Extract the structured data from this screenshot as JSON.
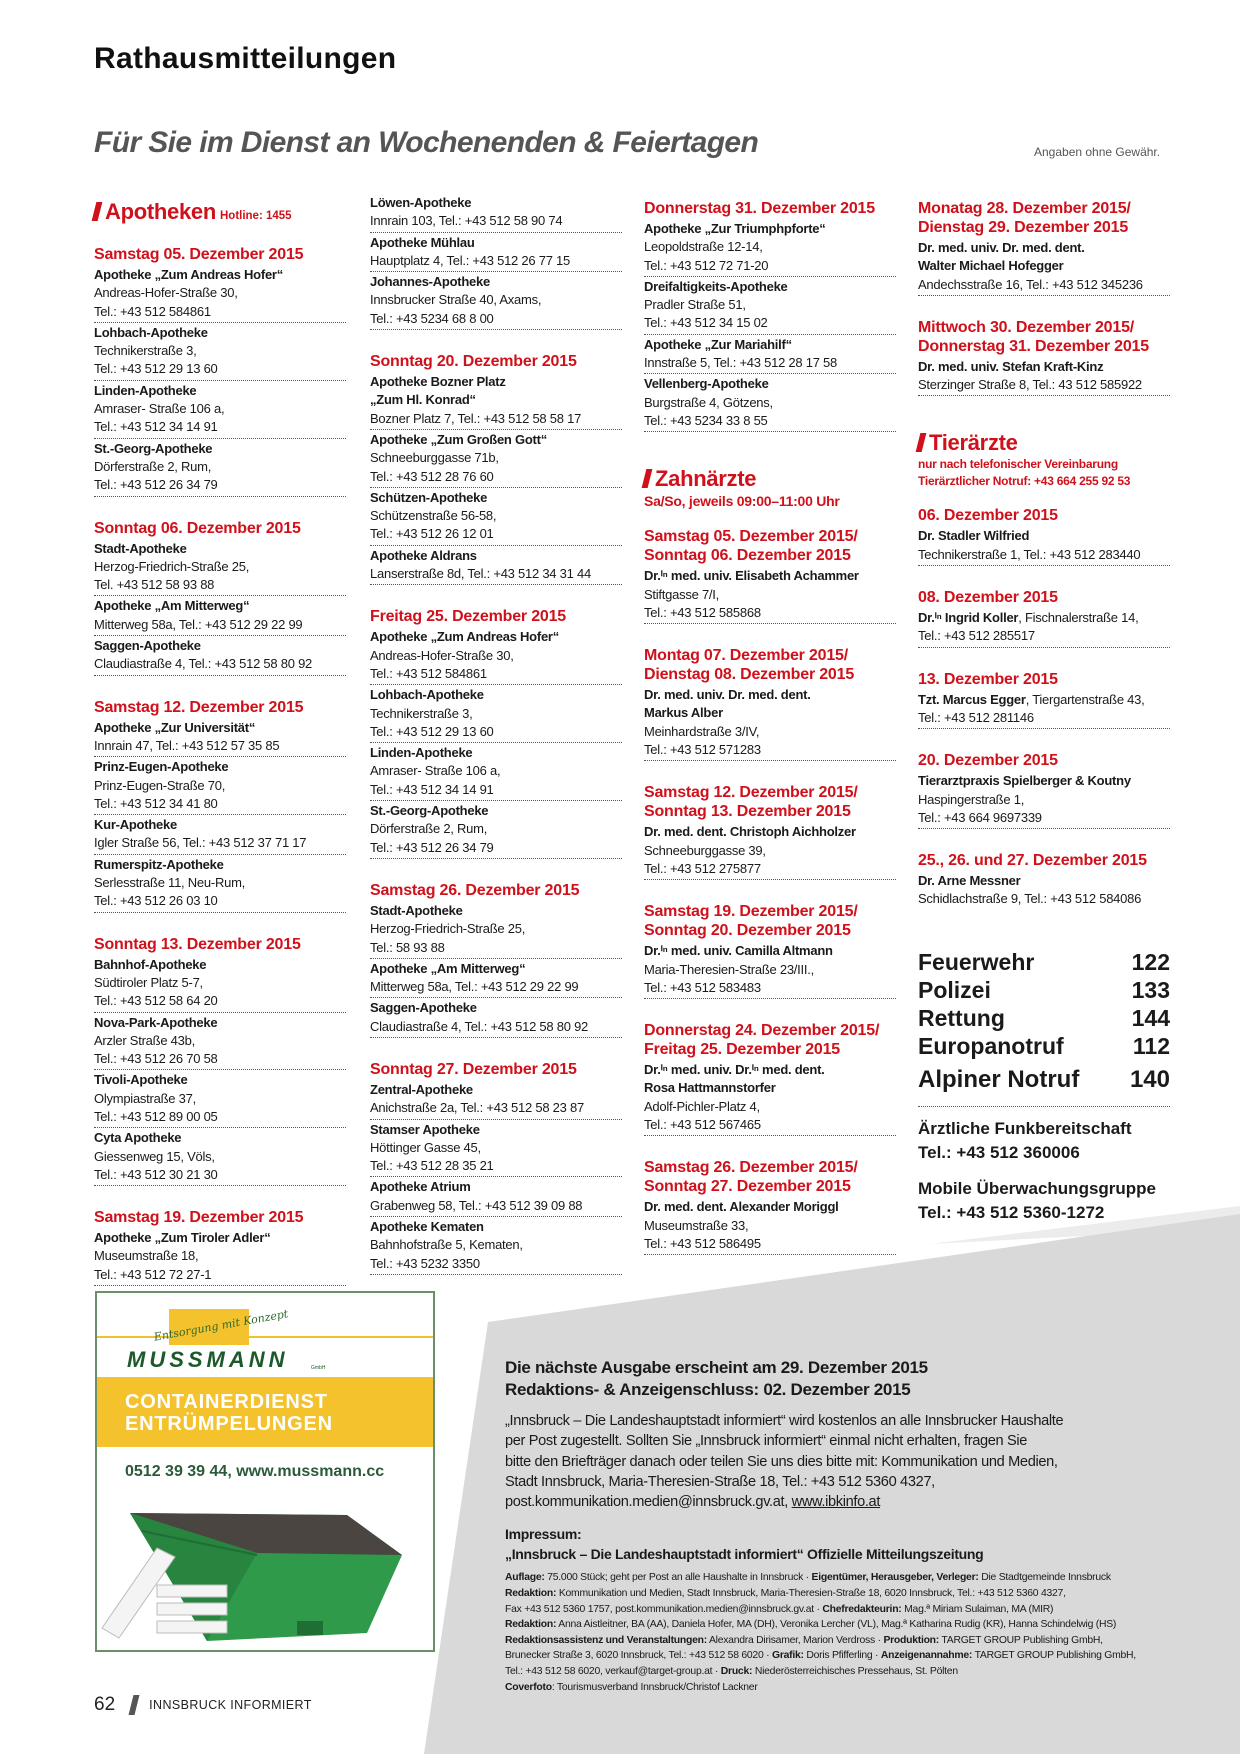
{
  "header": {
    "title": "Rathausmitteilungen",
    "subtitle": "Für Sie im Dienst an Wochenenden & Feiertagen",
    "disclaimer": "Angaben ohne Gewähr."
  },
  "colors": {
    "accent": "#d0111b",
    "subtitle_gray": "#555555",
    "panel_gray": "#d9d9d9",
    "ad_yellow": "#f3c22c",
    "ad_green": "#2f9a4a"
  },
  "columns": [
    {
      "blocks": [
        {
          "type": "section",
          "title": "Apotheken",
          "hotline": "Hotline: 1455"
        },
        {
          "type": "date",
          "lines": [
            "Samstag 05. Dezember 2015"
          ]
        },
        {
          "type": "entry",
          "name": [
            "Apotheke „Zum Andreas Hofer“"
          ],
          "lines": [
            "Andreas-Hofer-Straße 30,",
            "Tel.: +43 512 584861"
          ]
        },
        {
          "type": "entry",
          "name": [
            "Lohbach-Apotheke"
          ],
          "lines": [
            "Technikerstraße 3,",
            "Tel.: +43 512 29 13 60"
          ]
        },
        {
          "type": "entry",
          "name": [
            "Linden-Apotheke"
          ],
          "lines": [
            "Amraser- Straße 106 a,",
            "Tel.: +43 512 34 14 91"
          ]
        },
        {
          "type": "entry",
          "name": [
            "St.-Georg-Apotheke"
          ],
          "lines": [
            "Dörferstraße 2, Rum,",
            "Tel.: +43 512 26 34 79"
          ]
        },
        {
          "type": "date",
          "lines": [
            "Sonntag 06. Dezember 2015"
          ]
        },
        {
          "type": "entry",
          "name": [
            "Stadt-Apotheke"
          ],
          "lines": [
            "Herzog-Friedrich-Straße 25,",
            "Tel. +43 512 58 93 88"
          ]
        },
        {
          "type": "entry",
          "name": [
            "Apotheke „Am Mitterweg“"
          ],
          "lines": [
            "Mitterweg 58a, Tel.: +43 512 29 22 99"
          ]
        },
        {
          "type": "entry",
          "name": [
            "Saggen-Apotheke"
          ],
          "lines": [
            "Claudiastraße 4, Tel.: +43 512 58 80 92"
          ]
        },
        {
          "type": "date",
          "lines": [
            "Samstag 12. Dezember 2015"
          ]
        },
        {
          "type": "entry",
          "name": [
            "Apotheke „Zur Universität“"
          ],
          "lines": [
            " Innrain 47, Tel.: +43 512 57 35 85"
          ]
        },
        {
          "type": "entry",
          "name": [
            "Prinz-Eugen-Apotheke"
          ],
          "lines": [
            "Prinz-Eugen-Straße 70,",
            "Tel.: +43 512 34 41 80"
          ]
        },
        {
          "type": "entry",
          "name": [
            "Kur-Apotheke"
          ],
          "lines": [
            "Igler Straße 56, Tel.: +43 512 37 71 17"
          ]
        },
        {
          "type": "entry",
          "name": [
            "Rumerspitz-Apotheke"
          ],
          "lines": [
            "Serlesstraße 11, Neu-Rum,",
            "Tel.: +43 512 26 03 10"
          ]
        },
        {
          "type": "date",
          "lines": [
            "Sonntag 13. Dezember 2015"
          ]
        },
        {
          "type": "entry",
          "name": [
            "Bahnhof-Apotheke"
          ],
          "lines": [
            "Südtiroler Platz 5-7,",
            "Tel.: +43 512 58 64 20"
          ]
        },
        {
          "type": "entry",
          "name": [
            "Nova-Park-Apotheke"
          ],
          "lines": [
            "Arzler Straße 43b,",
            "Tel.: +43 512 26 70 58"
          ]
        },
        {
          "type": "entry",
          "name": [
            "Tivoli-Apotheke"
          ],
          "lines": [
            "Olympiastraße 37,",
            "Tel.: +43 512 89 00 05"
          ]
        },
        {
          "type": "entry",
          "name": [
            "Cyta Apotheke"
          ],
          "lines": [
            "Giessenweg 15, Völs,",
            "Tel.: +43 512 30 21 30"
          ]
        },
        {
          "type": "date",
          "lines": [
            "Samstag 19. Dezember 2015"
          ]
        },
        {
          "type": "entry",
          "name": [
            "Apotheke „Zum Tiroler Adler“"
          ],
          "lines": [
            "Museumstraße 18,",
            "Tel.: +43 512 72 27-1"
          ]
        }
      ]
    },
    {
      "blocks": [
        {
          "type": "entry",
          "name": [
            "Löwen-Apotheke"
          ],
          "lines": [
            "Innrain 103, Tel.: +43 512 58 90 74"
          ]
        },
        {
          "type": "entry",
          "name": [
            "Apotheke Mühlau"
          ],
          "lines": [
            "Hauptplatz 4, Tel.: +43 512 26 77 15"
          ]
        },
        {
          "type": "entry",
          "name": [
            "Johannes-Apotheke"
          ],
          "lines": [
            "Innsbrucker Straße 40, Axams,",
            "Tel.: +43 5234 68 8 00"
          ]
        },
        {
          "type": "date",
          "lines": [
            "Sonntag 20. Dezember 2015"
          ]
        },
        {
          "type": "entry",
          "name": [
            "Apotheke Bozner Platz",
            "„Zum Hl. Konrad“"
          ],
          "lines": [
            "Bozner Platz 7, Tel.: +43 512 58 58 17"
          ]
        },
        {
          "type": "entry",
          "name": [
            "Apotheke „Zum Großen Gott“"
          ],
          "lines": [
            "Schneeburggasse 71b,",
            "Tel.: +43 512 28 76 60"
          ]
        },
        {
          "type": "entry",
          "name": [
            "Schützen-Apotheke"
          ],
          "lines": [
            "Schützenstraße 56-58,",
            "Tel.: +43 512 26 12 01"
          ]
        },
        {
          "type": "entry",
          "name": [
            "Apotheke Aldrans"
          ],
          "lines": [
            "Lanserstraße 8d, Tel.: +43 512 34 31 44"
          ]
        },
        {
          "type": "date",
          "lines": [
            "Freitag 25. Dezember 2015"
          ]
        },
        {
          "type": "entry",
          "name": [
            "Apotheke „Zum Andreas Hofer“"
          ],
          "lines": [
            "Andreas-Hofer-Straße 30,",
            "Tel.: +43 512 584861"
          ]
        },
        {
          "type": "entry",
          "name": [
            "Lohbach-Apotheke"
          ],
          "lines": [
            "Technikerstraße 3,",
            "Tel.: +43 512 29 13 60"
          ]
        },
        {
          "type": "entry",
          "name": [
            "Linden-Apotheke"
          ],
          "lines": [
            "Amraser- Straße 106 a,",
            "Tel.: +43 512 34 14 91"
          ]
        },
        {
          "type": "entry",
          "name": [
            "St.-Georg-Apotheke"
          ],
          "lines": [
            "Dörferstraße 2, Rum,",
            "Tel.: +43 512 26 34 79"
          ]
        },
        {
          "type": "date",
          "lines": [
            "Samstag 26. Dezember 2015"
          ]
        },
        {
          "type": "entry",
          "name": [
            "Stadt-Apotheke"
          ],
          "lines": [
            "Herzog-Friedrich-Straße 25,",
            "Tel.: 58 93 88"
          ]
        },
        {
          "type": "entry",
          "name": [
            "Apotheke „Am Mitterweg“"
          ],
          "lines": [
            "Mitterweg 58a, Tel.: +43 512 29 22 99"
          ]
        },
        {
          "type": "entry",
          "name": [
            "Saggen-Apotheke"
          ],
          "lines": [
            "Claudiastraße 4, Tel.: +43 512 58 80 92"
          ]
        },
        {
          "type": "date",
          "lines": [
            "Sonntag 27. Dezember 2015"
          ]
        },
        {
          "type": "entry",
          "name": [
            "Zentral-Apotheke"
          ],
          "lines": [
            "Anichstraße 2a, Tel.: +43 512 58 23 87"
          ]
        },
        {
          "type": "entry",
          "name": [
            "Stamser Apotheke"
          ],
          "lines": [
            "Höttinger Gasse 45,",
            "Tel.: +43 512 28 35 21"
          ]
        },
        {
          "type": "entry",
          "name": [
            "Apotheke Atrium"
          ],
          "lines": [
            "Grabenweg 58, Tel.: +43 512 39 09 88"
          ]
        },
        {
          "type": "entry",
          "name": [
            "Apotheke Kematen"
          ],
          "lines": [
            "Bahnhofstraße 5, Kematen,",
            "Tel.: +43 5232 3350"
          ]
        }
      ]
    },
    {
      "blocks": [
        {
          "type": "date",
          "lines": [
            "Donnerstag 31. Dezember 2015"
          ]
        },
        {
          "type": "entry",
          "name": [
            "Apotheke „Zur Triumphpforte“"
          ],
          "lines": [
            "Leopoldstraße 12-14,",
            "Tel.: +43 512 72 71-20"
          ]
        },
        {
          "type": "entry",
          "name": [
            "Dreifaltigkeits-Apotheke"
          ],
          "lines": [
            "Pradler Straße 51,",
            "Tel.: +43 512 34 15 02"
          ]
        },
        {
          "type": "entry",
          "name": [
            "Apotheke „Zur Mariahilf“"
          ],
          "lines": [
            "Innstraße 5, Tel.: +43 512 28 17 58"
          ]
        },
        {
          "type": "entry",
          "name": [
            "Vellenberg-Apotheke"
          ],
          "lines": [
            "Burgstraße 4, Götzens,",
            "Tel.: +43 5234 33 8 55"
          ]
        },
        {
          "type": "section",
          "title": "Zahnärzte",
          "sub": [
            "Sa/So, jeweils 09:00–11:00 Uhr"
          ]
        },
        {
          "type": "date",
          "lines": [
            "Samstag 05. Dezember 2015/",
            "Sonntag 06. Dezember 2015"
          ]
        },
        {
          "type": "entry",
          "name": [
            "Dr.ⁱⁿ med. univ. Elisabeth Achammer"
          ],
          "lines": [
            "Stiftgasse 7/I,",
            "Tel.: +43 512 585868"
          ]
        },
        {
          "type": "date",
          "lines": [
            "Montag 07. Dezember 2015/",
            "Dienstag 08. Dezember 2015"
          ]
        },
        {
          "type": "entry",
          "name": [
            "Dr. med. univ. Dr. med. dent.",
            "Markus Alber"
          ],
          "lines": [
            "Meinhardstraße 3/IV,",
            "Tel.: +43 512 571283"
          ]
        },
        {
          "type": "date",
          "lines": [
            "Samstag 12. Dezember 2015/",
            "Sonntag 13. Dezember 2015"
          ]
        },
        {
          "type": "entry",
          "name": [
            "Dr. med. dent. Christoph Aichholzer"
          ],
          "lines": [
            "Schneeburggasse 39,",
            "Tel.: +43 512 275877"
          ]
        },
        {
          "type": "date",
          "lines": [
            "Samstag 19. Dezember 2015/",
            "Sonntag 20. Dezember 2015"
          ]
        },
        {
          "type": "entry",
          "name": [
            "Dr.ⁱⁿ med. univ. Camilla Altmann"
          ],
          "lines": [
            "Maria-Theresien-Straße 23/III.,",
            "Tel.: +43 512 583483"
          ]
        },
        {
          "type": "date",
          "lines": [
            "Donnerstag 24. Dezember 2015/",
            "Freitag 25. Dezember 2015"
          ]
        },
        {
          "type": "entry",
          "name": [
            "Dr.ⁱⁿ med. univ. Dr.ⁱⁿ med. dent.",
            "Rosa Hattmannstorfer"
          ],
          "lines": [
            "Adolf-Pichler-Platz 4,",
            "Tel.: +43 512 567465"
          ]
        },
        {
          "type": "date",
          "lines": [
            "Samstag 26. Dezember 2015/",
            "Sonntag 27. Dezember 2015"
          ]
        },
        {
          "type": "entry",
          "name": [
            "Dr. med. dent. Alexander Moriggl"
          ],
          "lines": [
            "Museumstraße 33,",
            "Tel.: +43 512 586495"
          ]
        }
      ]
    },
    {
      "blocks": [
        {
          "type": "date",
          "lines": [
            "Monatag 28. Dezember 2015/",
            "Dienstag 29. Dezember 2015"
          ]
        },
        {
          "type": "entry",
          "name": [
            "Dr. med. univ. Dr. med. dent.",
            "Walter Michael Hofegger"
          ],
          "lines": [
            "Andechsstraße 16, Tel.: +43 512 345236"
          ]
        },
        {
          "type": "date",
          "lines": [
            "Mittwoch 30. Dezember 2015/",
            "Donnerstag 31. Dezember 2015"
          ]
        },
        {
          "type": "entry",
          "name": [
            "Dr. med. univ. Stefan Kraft-Kinz"
          ],
          "lines": [
            "Sterzinger Straße 8, Tel.: 43 512 585922"
          ]
        },
        {
          "type": "section",
          "title": "Tierärzte",
          "sub_small": true,
          "sub": [
            "nur nach telefonischer Vereinbarung",
            "Tierärztlicher Notruf: +43 664 255 92 53"
          ]
        },
        {
          "type": "date",
          "lines": [
            "06. Dezember 2015"
          ]
        },
        {
          "type": "entry",
          "name": [
            "Dr. Stadler Wilfried"
          ],
          "lines": [
            "Technikerstraße 1, Tel.: +43 512 283440"
          ]
        },
        {
          "type": "date",
          "lines": [
            "08. Dezember 2015"
          ]
        },
        {
          "type": "entry",
          "name": [
            "Dr.ⁱⁿ Ingrid Koller"
          ],
          "name_tail": ", Fischnalerstraße 14,",
          "lines": [
            "Tel.: +43 512 285517"
          ]
        },
        {
          "type": "date",
          "lines": [
            "13. Dezember 2015"
          ]
        },
        {
          "type": "entry",
          "name": [
            "Tzt. Marcus Egger"
          ],
          "name_tail": ", Tiergartenstraße 43,",
          "lines": [
            "Tel.: +43 512 281146"
          ]
        },
        {
          "type": "date",
          "lines": [
            "20. Dezember 2015"
          ]
        },
        {
          "type": "entry",
          "name": [
            "Tierarztpraxis Spielberger & Koutny"
          ],
          "lines": [
            "Haspingerstraße 1,",
            "Tel.: +43 664 9697339"
          ]
        },
        {
          "type": "date",
          "lines": [
            "25., 26. und 27. Dezember 2015"
          ]
        },
        {
          "type": "entry",
          "no_rule": true,
          "name": [
            "Dr. Arne Messner"
          ],
          "lines": [
            "Schidlachstraße 9, Tel.: +43 512 584086"
          ]
        }
      ]
    }
  ],
  "emergency": {
    "numbers": [
      {
        "label": "Feuerwehr",
        "number": "122"
      },
      {
        "label": "Polizei",
        "number": "133"
      },
      {
        "label": "Rettung",
        "number": "144"
      },
      {
        "label": "Europanotruf",
        "number": "112"
      },
      {
        "label": "Alpiner Notruf",
        "number": "140"
      }
    ],
    "services": [
      {
        "label": "Ärztliche Funkbereitschaft",
        "tel": "Tel.: +43 512 360006"
      },
      {
        "label": "Mobile Überwachungsgruppe",
        "tel": "Tel.: +43 512 5360-1272"
      }
    ]
  },
  "ad": {
    "tagline": "Entsorgung mit Konzept",
    "brand": "MUSSMANN",
    "brand_suffix": "GmbH",
    "band_lines": [
      "CONTAINERDIENST",
      "ENTRÜMPELUNGEN"
    ],
    "contact": "0512 39 39 44, www.mussmann.cc"
  },
  "notice": {
    "headings": [
      "Die nächste Ausgabe erscheint am 29. Dezember 2015",
      "Redaktions- & Anzeigenschluss: 02. Dezember 2015"
    ],
    "body_lines": [
      "„Innsbruck – Die Landeshauptstadt informiert“ wird kostenlos an alle Innsbrucker Haushalte",
      "per Post zugestellt. Sollten Sie „Innsbruck informiert“ einmal nicht erhalten, fragen Sie",
      "bitte den Briefträger danach oder teilen Sie uns dies bitte mit: Kommunikation und Medien,",
      "Stadt Innsbruck, Maria-Theresien-Straße 18, Tel.: +43 512 5360 4327,"
    ],
    "last_line_text": "post.kommunikation.medien@innsbruck.gv.at, ",
    "link": "www.ibkinfo.at",
    "impressum_title": "Impressum:",
    "impressum_subtitle": "„Innsbruck – Die Landeshauptstadt informiert“ Offizielle Mitteilungszeitung",
    "impressum_lines": [
      [
        {
          "bold": true,
          "text": "Auflage:"
        },
        {
          "bold": false,
          "text": " 75.000 Stück; geht per Post an alle Haushalte in Innsbruck · "
        },
        {
          "bold": true,
          "text": "Eigentümer, Herausgeber, Verleger:"
        },
        {
          "bold": false,
          "text": " Die Stadtgemeinde Innsbruck"
        }
      ],
      [
        {
          "bold": true,
          "text": "Redaktion:"
        },
        {
          "bold": false,
          "text": " Kommunikation und Medien, Stadt Innsbruck, Maria-Theresien-Straße 18, 6020 Innsbruck, Tel.: +43 512 5360 4327,"
        }
      ],
      [
        {
          "bold": false,
          "text": "Fax +43 512 5360 1757, post.kommunikation.medien@innsbruck.gv.at · "
        },
        {
          "bold": true,
          "text": "Chefredakteurin:"
        },
        {
          "bold": false,
          "text": " Mag.ª Miriam Sulaiman, MA (MIR)"
        }
      ],
      [
        {
          "bold": true,
          "text": "Redaktion:"
        },
        {
          "bold": false,
          "text": " Anna Aistleitner, BA (AA), Daniela Hofer, MA (DH), Veronika Lercher (VL), Mag.ª Katharina Rudig (KR), Hanna Schindelwig (HS)"
        }
      ],
      [
        {
          "bold": true,
          "text": "Redaktionsassistenz und Veranstaltungen:"
        },
        {
          "bold": false,
          "text": " Alexandra Dirisamer, Marion Verdross · "
        },
        {
          "bold": true,
          "text": "Produktion:"
        },
        {
          "bold": false,
          "text": " TARGET GROUP Publishing GmbH,"
        }
      ],
      [
        {
          "bold": false,
          "text": "Brunecker Straße 3, 6020 Innsbruck, Tel.: +43 512 58 6020 · "
        },
        {
          "bold": true,
          "text": "Grafik:"
        },
        {
          "bold": false,
          "text": " Doris Pfifferling · "
        },
        {
          "bold": true,
          "text": "Anzeigenannahme:"
        },
        {
          "bold": false,
          "text": " TARGET GROUP Publishing GmbH,"
        }
      ],
      [
        {
          "bold": false,
          "text": "Tel.: +43 512 58 6020, verkauf@target-group.at · "
        },
        {
          "bold": true,
          "text": "Druck:"
        },
        {
          "bold": false,
          "text": " Niederösterreichisches Pressehaus, St. Pölten"
        }
      ],
      [
        {
          "bold": true,
          "text": "Coverfoto"
        },
        {
          "bold": false,
          "text": ": Tourismusverband Innsbruck/Christof Lackner"
        }
      ]
    ]
  },
  "footer": {
    "page_number": "62",
    "publication": "INNSBRUCK INFORMIERT"
  }
}
